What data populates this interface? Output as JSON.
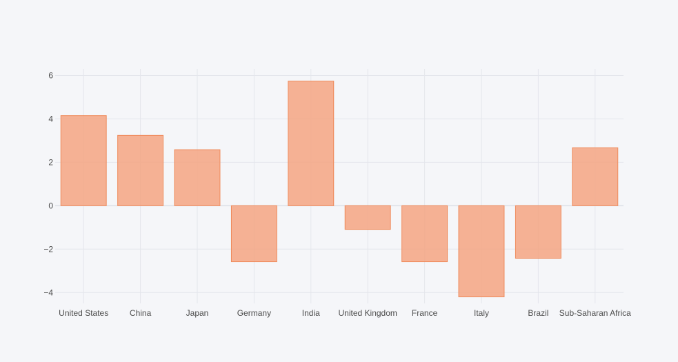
{
  "colors": {
    "background": "#f5f6f9",
    "bar_fill": "#f4a582",
    "bar_stroke": "#ef8a5a",
    "grid": "#e4e6ec",
    "zero_line": "#dcdfe6",
    "tick_text": "#4c4c4c"
  },
  "chart_data": {
    "type": "bar",
    "title": "",
    "xlabel": "",
    "ylabel": "",
    "categories": [
      "United States",
      "China",
      "Japan",
      "Germany",
      "India",
      "United Kingdom",
      "France",
      "Italy",
      "Brazil",
      "Sub-Saharan Africa"
    ],
    "values": [
      4.15,
      3.24,
      2.58,
      -2.58,
      5.74,
      -1.09,
      -2.58,
      -4.2,
      -2.42,
      2.67
    ],
    "ylim": [
      -4.5,
      6.3
    ],
    "yticks": [
      -4,
      -2,
      0,
      2,
      4,
      6
    ],
    "ytick_labels": [
      "−4",
      "−2",
      "0",
      "2",
      "4",
      "6"
    ],
    "grid": true,
    "legend": false
  }
}
